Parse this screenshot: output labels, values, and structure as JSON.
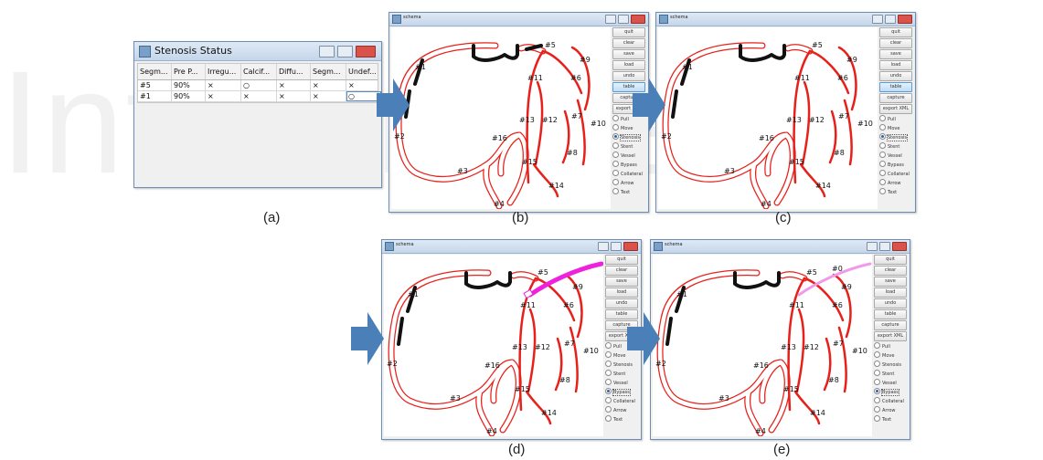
{
  "panel_labels": [
    "(a)",
    "(b)",
    "(c)",
    "(d)",
    "(e)"
  ],
  "status_window": {
    "title": "Stenosis Status",
    "columns": [
      "Segm...",
      "Pre P...",
      "Irregu...",
      "Calcif...",
      "Diffu...",
      "Segm...",
      "Undef..."
    ],
    "rows": [
      [
        "#5",
        "90%",
        "×",
        "○",
        "×",
        "×",
        "×"
      ],
      [
        "#1",
        "90%",
        "×",
        "×",
        "×",
        "×",
        "○"
      ]
    ]
  },
  "schema_window": {
    "title": "schema",
    "buttons": [
      "quit",
      "clear",
      "save",
      "load",
      "undo",
      "table",
      "capture",
      "export XML"
    ],
    "radios": [
      "Pull",
      "Move",
      "Stenosis",
      "Stent",
      "Vessel",
      "Bypass",
      "Collateral",
      "Arrow",
      "Text"
    ]
  },
  "segment_labels": [
    "#1",
    "#2",
    "#3",
    "#4",
    "#5",
    "#6",
    "#7",
    "#8",
    "#9",
    "#10",
    "#11",
    "#12",
    "#13",
    "#14",
    "#15",
    "#16"
  ],
  "bypass_label": "#0",
  "panels": [
    {
      "id": "b",
      "active_button": "table",
      "selected_radio": "Stenosis"
    },
    {
      "id": "c",
      "active_button": "table",
      "selected_radio": "Stenosis"
    },
    {
      "id": "d",
      "active_button": "",
      "selected_radio": "Bypass"
    },
    {
      "id": "e",
      "active_button": "",
      "selected_radio": "Bypass"
    }
  ],
  "colors": {
    "vessel": "#e8201a",
    "stenosis": "#111111",
    "bypass_drawing": "#ee22dd",
    "bypass_placed": "#f19ae9",
    "arrow": "#4b7fb8"
  }
}
